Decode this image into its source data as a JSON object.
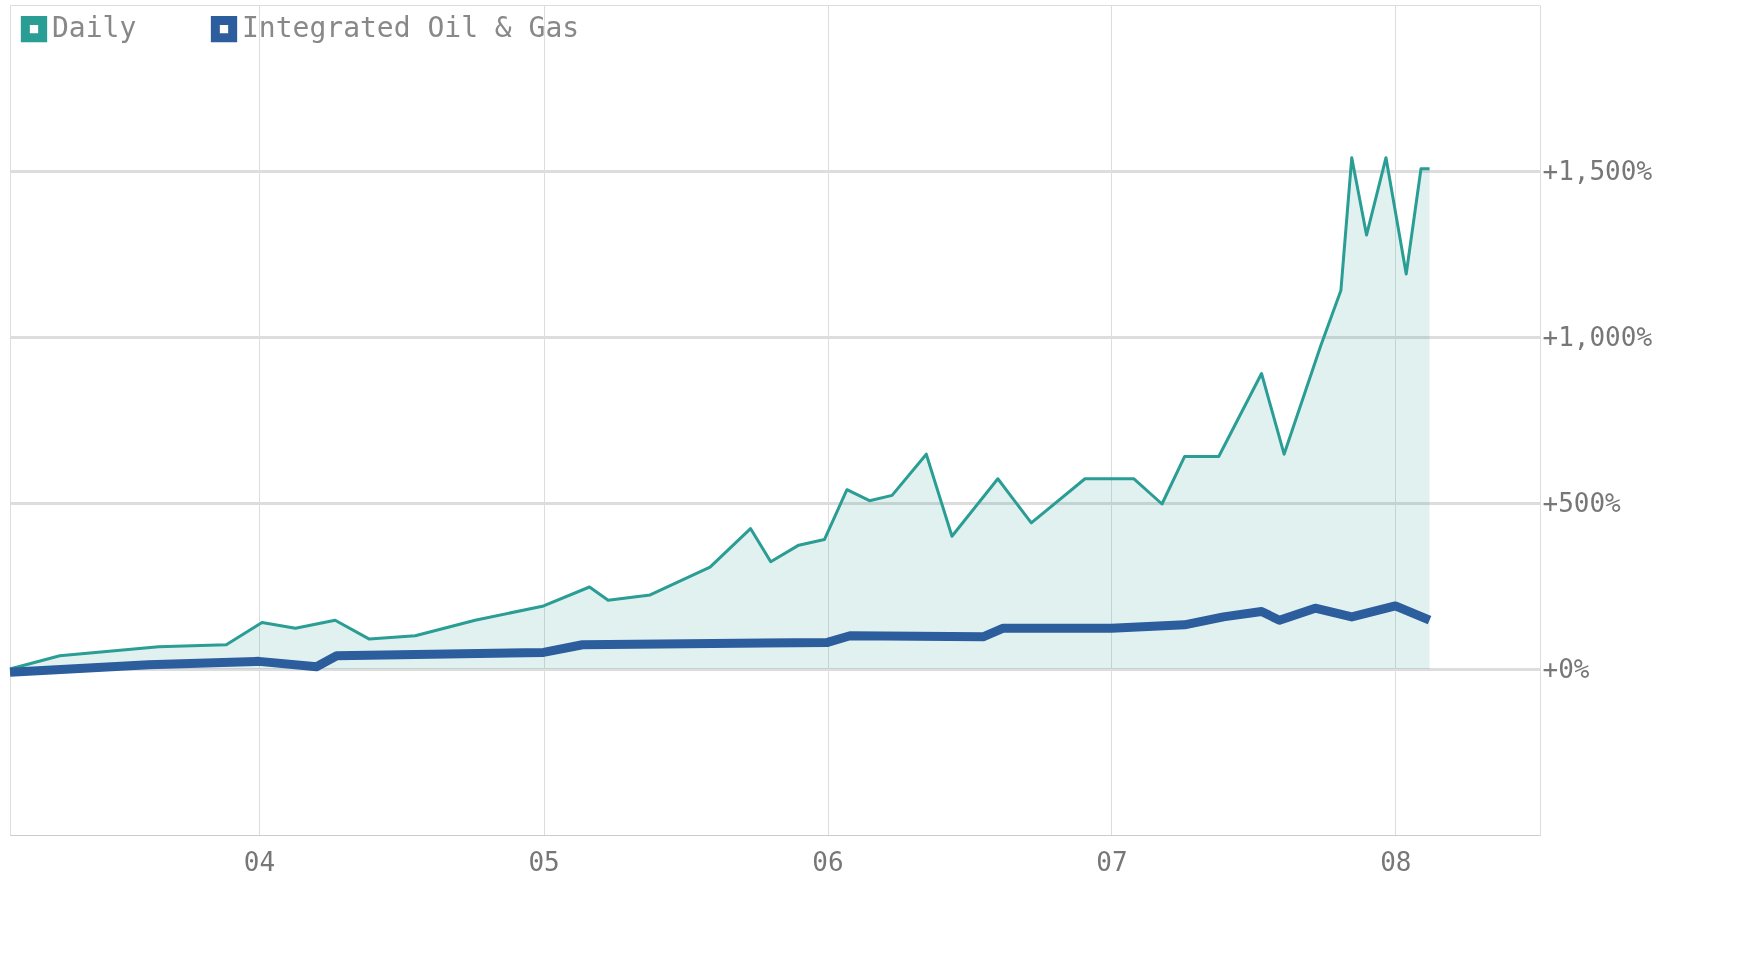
{
  "chart_data": {
    "type": "area",
    "xlim": [
      "2003-02-15",
      "2008-07-05"
    ],
    "xticks": [
      {
        "value": "2004-01-01",
        "label": "04"
      },
      {
        "value": "2005-01-01",
        "label": "05"
      },
      {
        "value": "2006-01-01",
        "label": "06"
      },
      {
        "value": "2007-01-01",
        "label": "07"
      },
      {
        "value": "2008-01-01",
        "label": "08"
      }
    ],
    "ylim": [
      -500,
      2000
    ],
    "yticks": [
      {
        "value": 0,
        "label": "+0%"
      },
      {
        "value": 500,
        "label": "+500%"
      },
      {
        "value": 1000,
        "label": "+1,000%"
      },
      {
        "value": 1500,
        "label": "+1,500%"
      }
    ],
    "grid": true,
    "legend": "top left",
    "series": [
      {
        "name": "Daily",
        "color": "#2a9d94",
        "x": [
          "2003-02-15",
          "2003-04-20",
          "2003-08-25",
          "2003-11-20",
          "2004-01-05",
          "2004-02-17",
          "2004-04-08",
          "2004-05-22",
          "2004-07-20",
          "2004-10-05",
          "2005-01-01",
          "2005-03-01",
          "2005-03-25",
          "2005-05-18",
          "2005-08-03",
          "2005-09-24",
          "2005-10-20",
          "2005-11-25",
          "2005-12-28",
          "2006-01-26",
          "2006-02-24",
          "2006-03-25",
          "2006-05-08",
          "2006-06-10",
          "2006-08-08",
          "2006-09-20",
          "2006-11-28",
          "2007-01-30",
          "2007-03-07",
          "2007-04-05",
          "2007-05-19",
          "2007-07-13",
          "2007-08-11",
          "2007-09-27",
          "2007-10-23",
          "2007-11-06",
          "2007-11-25",
          "2007-12-20",
          "2008-01-15",
          "2008-02-03",
          "2008-02-14"
        ],
        "values": [
          0,
          40,
          67,
          73,
          140,
          123,
          147,
          90,
          100,
          147,
          190,
          247,
          207,
          223,
          307,
          423,
          323,
          373,
          390,
          540,
          507,
          523,
          647,
          400,
          573,
          440,
          573,
          573,
          497,
          640,
          640,
          890,
          647,
          973,
          1140,
          1540,
          1307,
          1540,
          1190,
          1507,
          1507
        ]
      },
      {
        "name": "Integrated Oil & Gas",
        "type": "line",
        "color": "#2c5d9c",
        "x": [
          "2003-02-15",
          "2003-08-12",
          "2004-01-01",
          "2004-03-15",
          "2004-04-10",
          "2005-01-01",
          "2005-02-20",
          "2006-01-01",
          "2006-01-30",
          "2006-07-20",
          "2006-08-15",
          "2007-01-01",
          "2007-04-05",
          "2007-05-25",
          "2007-07-13",
          "2007-08-05",
          "2007-09-20",
          "2007-11-06",
          "2008-01-01",
          "2008-02-14"
        ],
        "values": [
          -10,
          13,
          23,
          7,
          40,
          50,
          73,
          80,
          100,
          97,
          123,
          123,
          133,
          157,
          173,
          147,
          183,
          157,
          190,
          147
        ]
      }
    ]
  }
}
